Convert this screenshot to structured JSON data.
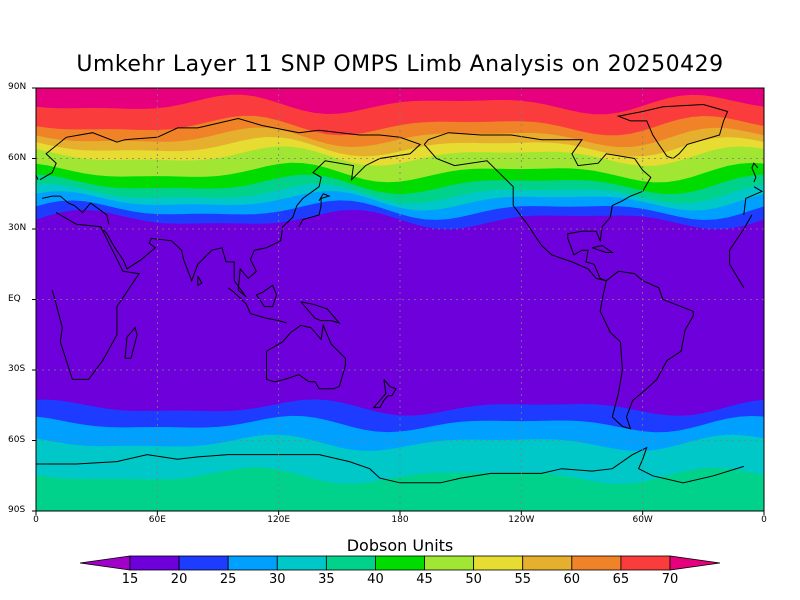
{
  "title": "Umkehr Layer 11 SNP OMPS Limb Analysis on 20250429",
  "units_label": "Dobson Units",
  "y_tick_labels": [
    "90N",
    "60N",
    "30N",
    "EQ",
    "30S",
    "60S",
    "90S"
  ],
  "x_tick_labels": [
    "0",
    "60E",
    "120E",
    "180",
    "120W",
    "60W",
    "0"
  ],
  "colorbar": {
    "levels": [
      "15",
      "20",
      "25",
      "30",
      "35",
      "40",
      "45",
      "50",
      "55",
      "60",
      "65",
      "70"
    ],
    "colors": [
      "#a000c8",
      "#6e00dc",
      "#1e3cff",
      "#00a0ff",
      "#00c8c8",
      "#00d28c",
      "#00dc00",
      "#a0e632",
      "#e6dc32",
      "#e6af2d",
      "#f08228",
      "#fa3c3c",
      "#e6007d"
    ]
  },
  "chart_data": {
    "type": "heatmap",
    "title": "Umkehr Layer 11 SNP OMPS Limb Analysis on 20250429",
    "colorbar_label": "Dobson Units",
    "levels": [
      15,
      20,
      25,
      30,
      35,
      40,
      45,
      50,
      55,
      60,
      65,
      70
    ],
    "xlabel": "",
    "ylabel": "",
    "xlim": [
      0,
      360
    ],
    "ylim": [
      -90,
      90
    ],
    "grid": true,
    "band_edges_north": [
      {
        "level": 70,
        "lat": 83
      },
      {
        "level": 65,
        "lat": 74
      },
      {
        "level": 60,
        "lat": 69
      },
      {
        "level": 55,
        "lat": 65
      },
      {
        "level": 50,
        "lat": 61
      },
      {
        "level": 45,
        "lat": 54
      },
      {
        "level": 40,
        "lat": 49
      },
      {
        "level": 35,
        "lat": 45
      },
      {
        "level": 30,
        "lat": 42
      },
      {
        "level": 25,
        "lat": 38
      },
      {
        "level": 20,
        "lat": 34
      }
    ],
    "band_edges_south": [
      {
        "level": 20,
        "lat": -46
      },
      {
        "level": 25,
        "lat": -53
      },
      {
        "level": 30,
        "lat": -61
      },
      {
        "level": 35,
        "lat": -75
      }
    ]
  }
}
